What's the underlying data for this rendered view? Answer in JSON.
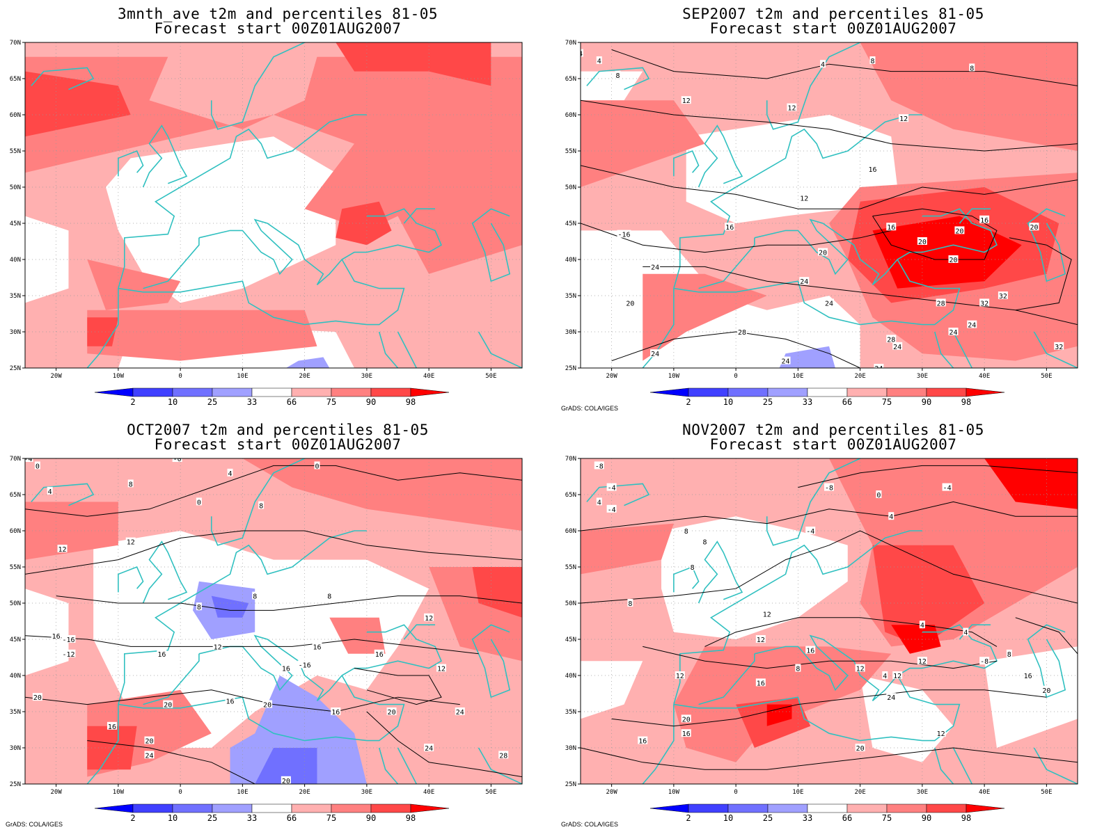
{
  "panels": [
    {
      "title": "3mnth_ave t2m and percentiles 81-05",
      "subtitle": "Forecast start 00Z01AUG2007",
      "credit": ""
    },
    {
      "title": "SEP2007 t2m and percentiles 81-05",
      "subtitle": "Forecast start 00Z01AUG2007",
      "credit": "GrADS: COLA/IGES"
    },
    {
      "title": "OCT2007 t2m and percentiles 81-05",
      "subtitle": "Forecast start 00Z01AUG2007",
      "credit": "GrADS: COLA/IGES"
    },
    {
      "title": "NOV2007 t2m and percentiles 81-05",
      "subtitle": "Forecast start 00Z01AUG2007",
      "credit": "GrADS: COLA/IGES"
    }
  ],
  "lat_ticks": [
    "70N",
    "65N",
    "60N",
    "55N",
    "50N",
    "45N",
    "40N",
    "35N",
    "30N",
    "25N"
  ],
  "lon_ticks": [
    "20W",
    "10W",
    "0",
    "10E",
    "20E",
    "30E",
    "40E",
    "50E"
  ],
  "colorbar": {
    "labels": [
      "2",
      "10",
      "25",
      "33",
      "66",
      "75",
      "90",
      "98"
    ],
    "colors": [
      "#0000ff",
      "#4040ff",
      "#7070ff",
      "#a0a0ff",
      "#ffffff",
      "#ffb0b0",
      "#ff8080",
      "#ff4848",
      "#ff0000"
    ]
  },
  "colors": {
    "coast": "#30c0c0",
    "contour": "#000000",
    "grid": "#999999"
  },
  "contour_labels": [
    [],
    [
      "4",
      "4",
      "8",
      "4",
      "8",
      "8",
      "12",
      "12",
      "12",
      "16",
      "12",
      "-16",
      "16",
      "16",
      "20",
      "16",
      "20",
      "20",
      "20",
      "20",
      "24",
      "24",
      "24",
      "28",
      "20",
      "32",
      "24",
      "28",
      "24",
      "24",
      "24",
      "28",
      "32",
      "32",
      "24",
      "24"
    ],
    [
      "-4",
      "0",
      "4",
      "8",
      "4",
      "0",
      "0",
      "8",
      "-0",
      "12",
      "12",
      "8",
      "8",
      "8",
      "12",
      "16",
      "-16",
      "-12",
      "16",
      "12",
      "16",
      "16",
      "-16",
      "16",
      "12",
      "20",
      "20",
      "16",
      "16",
      "20",
      "20",
      "24",
      "20",
      "24",
      "28",
      "20",
      "16",
      "24"
    ],
    [
      "-8",
      "-4",
      "-4",
      "4",
      "-8",
      "-4",
      "0",
      "4",
      "8",
      "8",
      "-4",
      "8",
      "8",
      "12",
      "4",
      "4",
      "12",
      "16",
      "-8",
      "12",
      "8",
      "12",
      "4",
      "8",
      "16",
      "12",
      "12",
      "16",
      "20",
      "20",
      "16",
      "16",
      "12",
      "20",
      "24"
    ]
  ]
}
